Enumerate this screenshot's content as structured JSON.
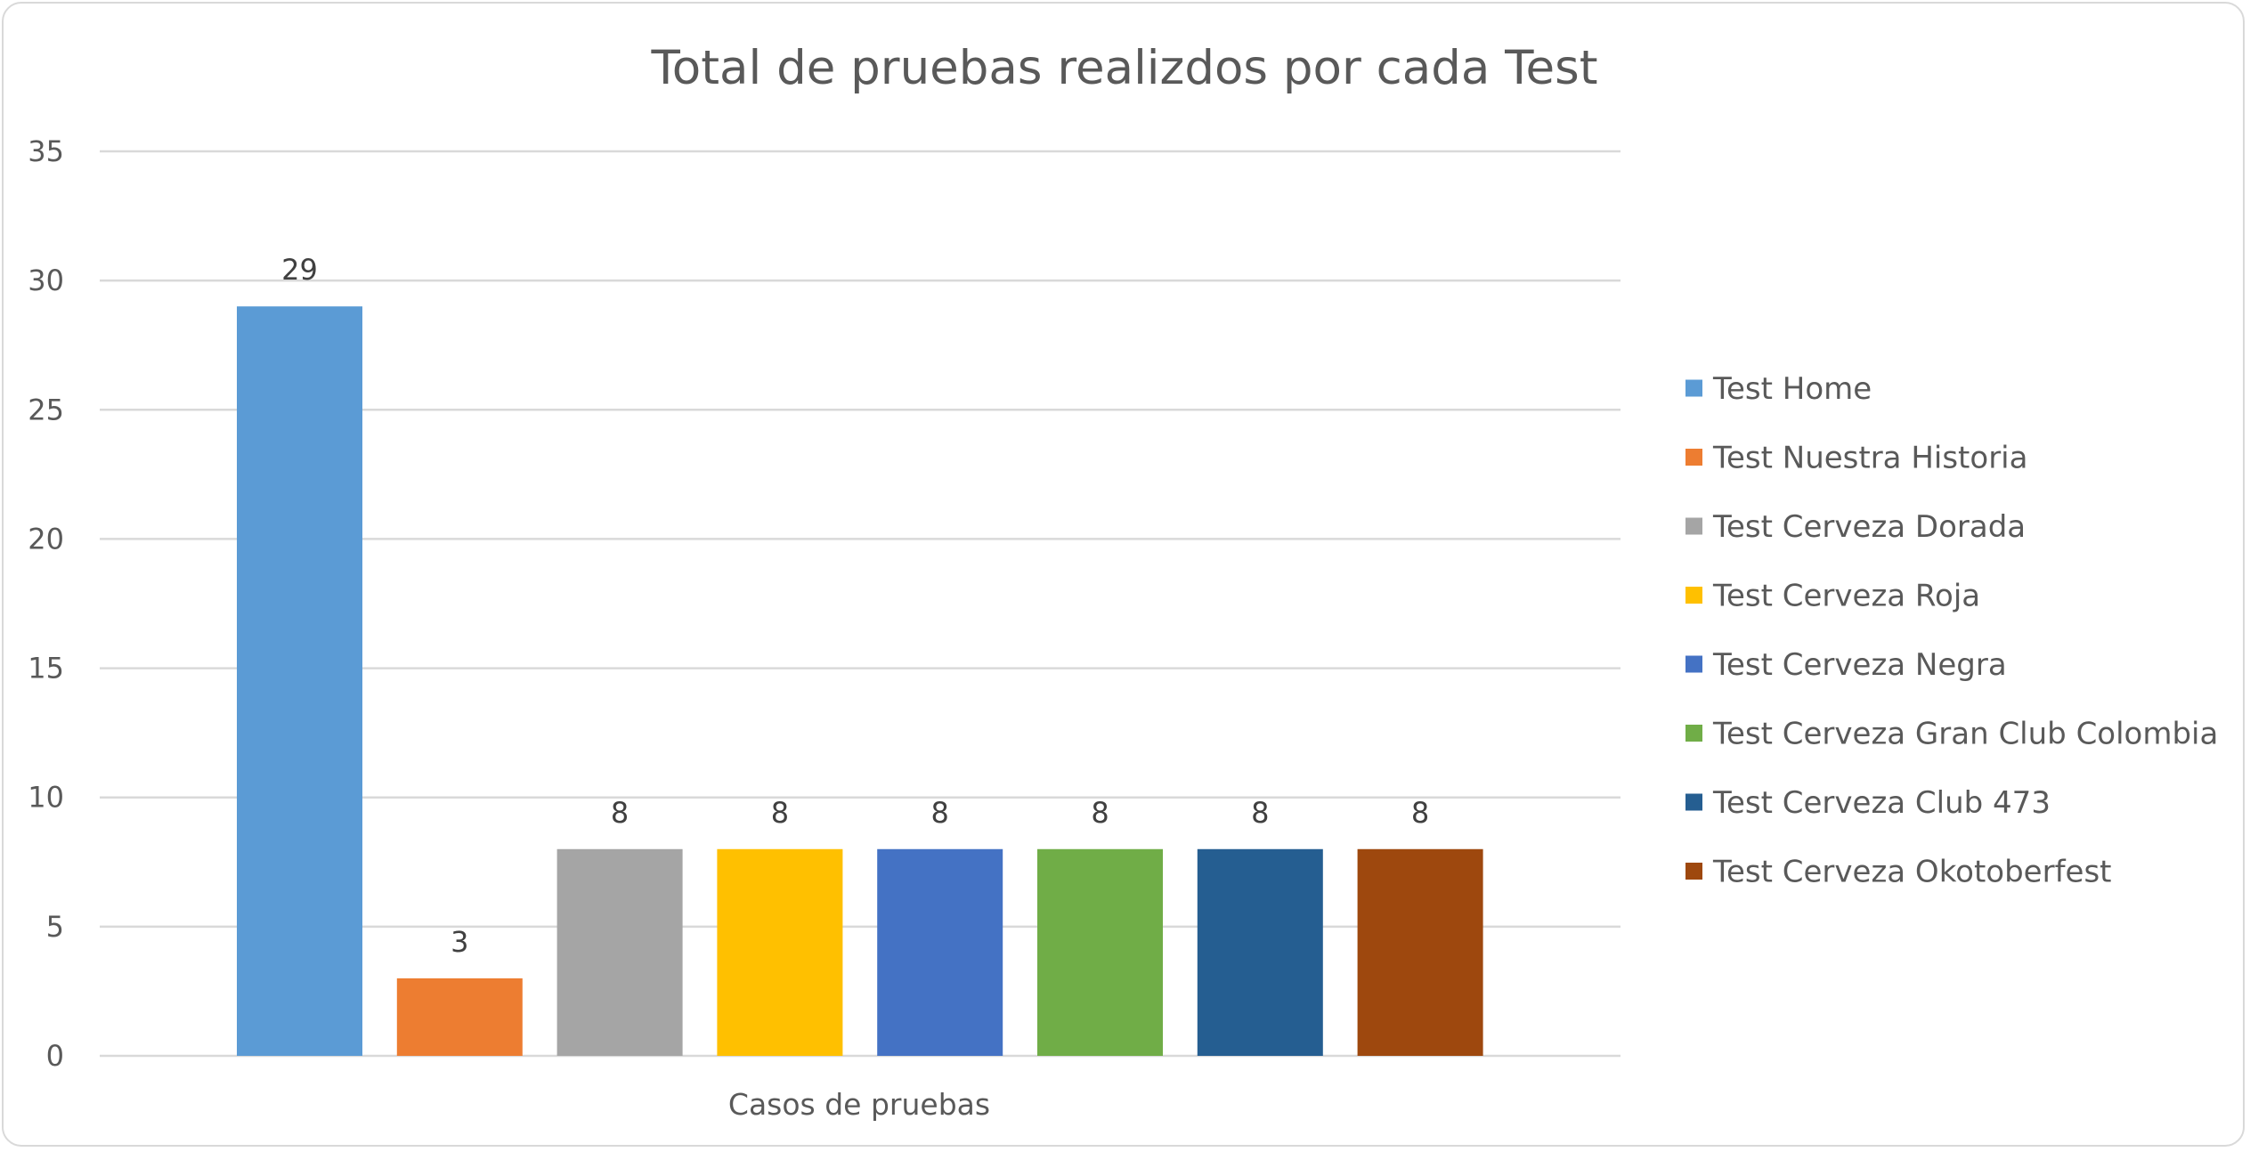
{
  "chart_data": {
    "type": "bar",
    "title": "Total de pruebas realizdos por cada Test",
    "xlabel": "Casos de pruebas",
    "ylabel": "",
    "categories": [
      "Casos de pruebas"
    ],
    "series": [
      {
        "name": "Test Home",
        "values": [
          29
        ],
        "color": "#5b9bd5"
      },
      {
        "name": "Test Nuestra Historia",
        "values": [
          3
        ],
        "color": "#ed7d31"
      },
      {
        "name": "Test Cerveza Dorada",
        "values": [
          8
        ],
        "color": "#a5a5a5"
      },
      {
        "name": "Test Cerveza Roja",
        "values": [
          8
        ],
        "color": "#ffc000"
      },
      {
        "name": "Test Cerveza Negra",
        "values": [
          8
        ],
        "color": "#4472c4"
      },
      {
        "name": "Test Cerveza Gran Club Colombia",
        "values": [
          8
        ],
        "color": "#70ad47"
      },
      {
        "name": "Test Cerveza Club 473",
        "values": [
          8
        ],
        "color": "#255e91"
      },
      {
        "name": "Test Cerveza Okotoberfest",
        "values": [
          8
        ],
        "color": "#9e480e"
      }
    ],
    "ylim": [
      0,
      35
    ],
    "yticks": [
      "0",
      "5",
      "10",
      "15",
      "20",
      "25",
      "30",
      "35"
    ],
    "grid": true,
    "legend_position": "right",
    "data_labels": true
  }
}
